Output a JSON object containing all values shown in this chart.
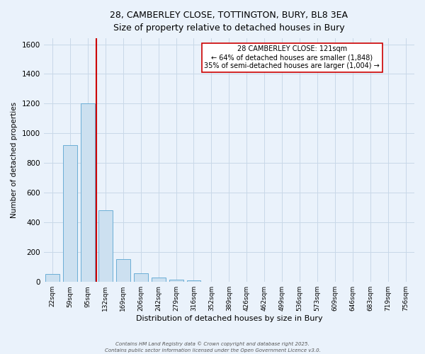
{
  "title_line1": "28, CAMBERLEY CLOSE, TOTTINGTON, BURY, BL8 3EA",
  "title_line2": "Size of property relative to detached houses in Bury",
  "bar_labels": [
    "22sqm",
    "59sqm",
    "95sqm",
    "132sqm",
    "169sqm",
    "206sqm",
    "242sqm",
    "279sqm",
    "316sqm",
    "352sqm",
    "389sqm",
    "426sqm",
    "462sqm",
    "499sqm",
    "536sqm",
    "573sqm",
    "609sqm",
    "646sqm",
    "683sqm",
    "719sqm",
    "756sqm"
  ],
  "bar_values": [
    55,
    920,
    1200,
    480,
    155,
    60,
    30,
    15,
    10,
    0,
    0,
    0,
    0,
    0,
    0,
    0,
    0,
    0,
    0,
    0,
    0
  ],
  "bar_color": "#cce0f0",
  "bar_edge_color": "#6baed6",
  "reference_line_color": "#cc0000",
  "ylabel": "Number of detached properties",
  "xlabel": "Distribution of detached houses by size in Bury",
  "ylim": [
    0,
    1640
  ],
  "yticks": [
    0,
    200,
    400,
    600,
    800,
    1000,
    1200,
    1400,
    1600
  ],
  "annotation_title": "28 CAMBERLEY CLOSE: 121sqm",
  "annotation_line2": "← 64% of detached houses are smaller (1,848)",
  "annotation_line3": "35% of semi-detached houses are larger (1,004) →",
  "annotation_box_color": "#ffffff",
  "annotation_box_edge": "#cc0000",
  "grid_color": "#c8d8e8",
  "bg_color": "#eaf2fb",
  "footer1": "Contains HM Land Registry data © Crown copyright and database right 2025.",
  "footer2": "Contains public sector information licensed under the Open Government Licence v3.0."
}
